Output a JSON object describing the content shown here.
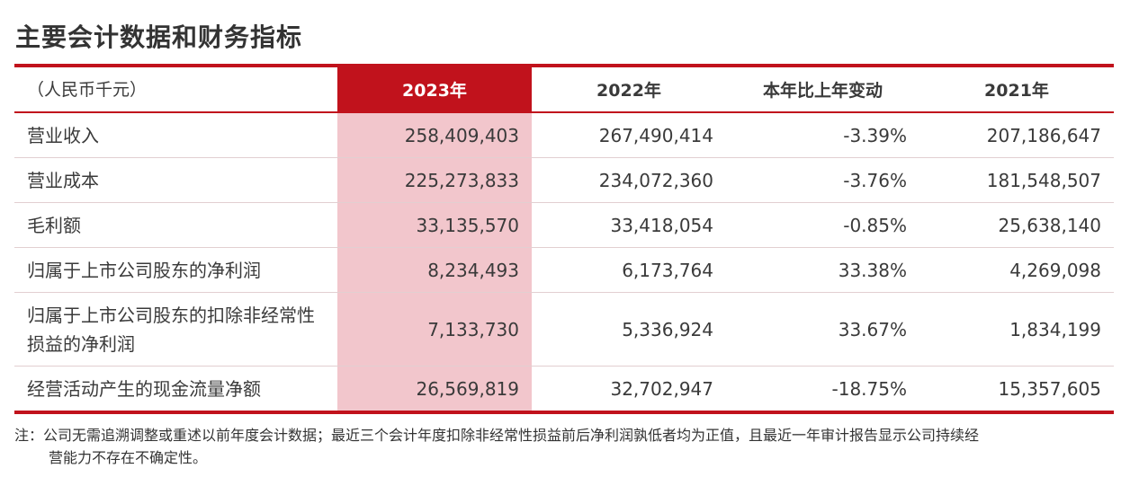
{
  "title": "主要会计数据和财务指标",
  "table": {
    "headers": [
      "（人民币千元）",
      "2023年",
      "2022年",
      "本年比上年变动",
      "2021年"
    ],
    "rows": [
      [
        "营业收入",
        "258,409,403",
        "267,490,414",
        "-3.39%",
        "207,186,647"
      ],
      [
        "营业成本",
        "225,273,833",
        "234,072,360",
        "-3.76%",
        "181,548,507"
      ],
      [
        "毛利额",
        "33,135,570",
        "33,418,054",
        "-0.85%",
        "25,638,140"
      ],
      [
        "归属于上市公司股东的净利润",
        "8,234,493",
        "6,173,764",
        "33.38%",
        "4,269,098"
      ],
      [
        "归属于上市公司股东的扣除非经常性损益的净利润",
        "7,133,730",
        "5,336,924",
        "33.67%",
        "1,834,199"
      ],
      [
        "经营活动产生的现金流量净额",
        "26,569,819",
        "32,702,947",
        "-18.75%",
        "15,357,605"
      ]
    ]
  },
  "note": {
    "line1": "注：公司无需追溯调整或重述以前年度会计数据；最近三个会计年度扣除非经常性损益前后净利润孰低者均为正值，且最近一年审计报告显示公司持续经",
    "line2": "营能力不存在不确定性。"
  },
  "colors": {
    "accent": "#c1121c",
    "highlight": "#f2c6cc"
  }
}
